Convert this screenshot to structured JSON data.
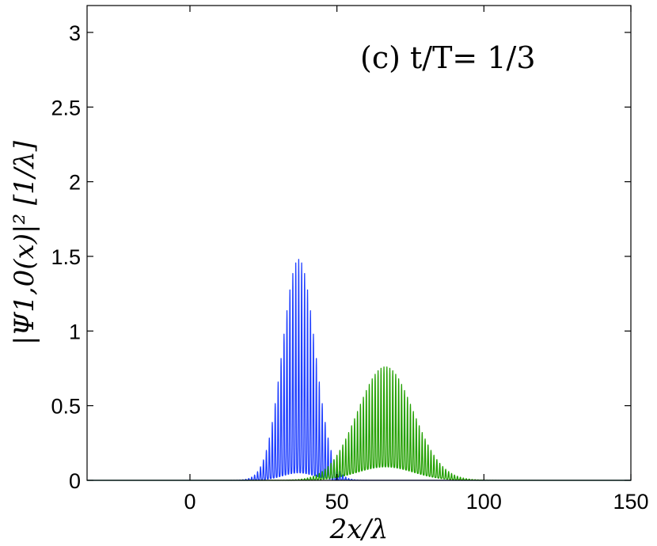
{
  "chart_data": {
    "type": "line",
    "annotation": "(c) t/T= 1/3",
    "xlabel": "2x/λ",
    "ylabel": "|Ψ1,0(x)|² [1/λ]",
    "xlim": [
      -35,
      150
    ],
    "ylim": [
      0,
      3.18
    ],
    "xticks": [
      0,
      50,
      100,
      150
    ],
    "yticks": [
      0,
      0.5,
      1,
      1.5,
      2,
      2.5,
      3
    ],
    "ytick_labels": [
      "0",
      "0.5",
      "1",
      "1.5",
      "2",
      "2.5",
      "3"
    ],
    "xtick_labels": [
      "0",
      "50",
      "100",
      "150"
    ],
    "grid": false,
    "series": [
      {
        "color": "#1f3fff",
        "center": 37,
        "width": 5.5,
        "peak": 1.48,
        "inner_peak": 0.05,
        "oscillation_period": 1
      },
      {
        "color": "#22a000",
        "center": 66.5,
        "width": 9.5,
        "peak": 0.76,
        "inner_peak": 0.09,
        "oscillation_period": 1
      }
    ]
  }
}
